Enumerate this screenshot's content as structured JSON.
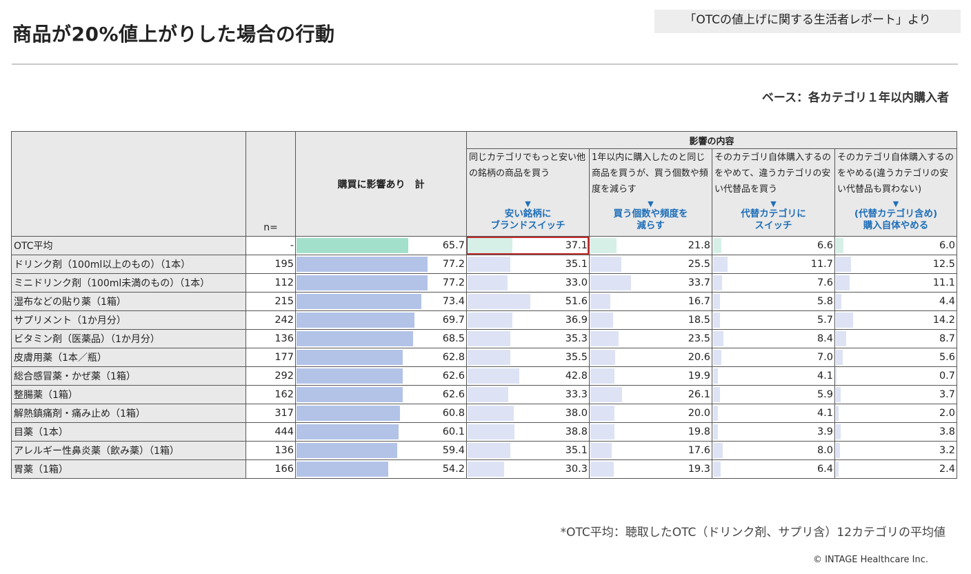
{
  "title": "商品が20%値上がりした場合の行動",
  "source": "「OTCの値上げに関する生活者レポート」より",
  "base": "ベース：各カテゴリ１年以内購入者",
  "footnote": "*OTC平均：聴取したOTC（ドリンク剤、サプリ含）12カテゴリの平均値",
  "copyright": "© INTAGE Healthcare Inc.",
  "colors": {
    "avg_total": "#a3e0cc",
    "avg_sub": "#d6f0e8",
    "total": "#b3c3e8",
    "sub": "#dde3f4",
    "accent_blue": "#1f6fb8",
    "highlight": "#c42b2b"
  },
  "chart_data": {
    "type": "table",
    "header": {
      "n_label": "n=",
      "total_label": "購買に影響あり　計",
      "impact_group_label": "影響の内容",
      "columns": [
        {
          "desc": "同じカテゴリでもっと安い他の銘柄の商品を買う",
          "arrow": "▼",
          "label_1": "安い銘柄に",
          "label_2": "ブランドスイッチ"
        },
        {
          "desc": "1年以内に購入したのと同じ商品を買うが、買う個数や頻度を減らす",
          "arrow": "▼",
          "label_1": "買う個数や頻度を",
          "label_2": "減らす"
        },
        {
          "desc": "そのカテゴリ自体購入するのをやめて、違うカテゴリの安い代替品を買う",
          "arrow": "▼",
          "label_1": "代替カテゴリに",
          "label_2": "スイッチ"
        },
        {
          "desc": "そのカテゴリ自体購入するのをやめる(違うカテゴリの安い代替品も買わない)",
          "arrow": "▼",
          "label_1": "(代替カテゴリ含め)",
          "label_2": "購入自体やめる"
        }
      ]
    },
    "rows": [
      {
        "category": "OTC平均",
        "n": "-",
        "total": 65.7,
        "values": [
          37.1,
          21.8,
          6.6,
          6.0
        ],
        "is_average": true
      },
      {
        "category": "ドリンク剤（100ml以上のもの）（1本）",
        "n": "195",
        "total": 77.2,
        "values": [
          35.1,
          25.5,
          11.7,
          12.5
        ]
      },
      {
        "category": "ミニドリンク剤（100ml未満のもの）（1本）",
        "n": "112",
        "total": 77.2,
        "values": [
          33.0,
          33.7,
          7.6,
          11.1
        ]
      },
      {
        "category": "湿布などの貼り薬（1箱）",
        "n": "215",
        "total": 73.4,
        "values": [
          51.6,
          16.7,
          5.8,
          4.4
        ]
      },
      {
        "category": "サプリメント（1か月分）",
        "n": "242",
        "total": 69.7,
        "values": [
          36.9,
          18.5,
          5.7,
          14.2
        ]
      },
      {
        "category": "ビタミン剤（医薬品）（1か月分）",
        "n": "136",
        "total": 68.5,
        "values": [
          35.3,
          23.5,
          8.4,
          8.7
        ]
      },
      {
        "category": "皮膚用薬（1本／瓶）",
        "n": "177",
        "total": 62.8,
        "values": [
          35.5,
          20.6,
          7.0,
          5.6
        ]
      },
      {
        "category": "総合感冒薬・かぜ薬（1箱）",
        "n": "292",
        "total": 62.6,
        "values": [
          42.8,
          19.9,
          4.1,
          0.7
        ]
      },
      {
        "category": "整腸薬（1箱）",
        "n": "162",
        "total": 62.6,
        "values": [
          33.3,
          26.1,
          5.9,
          3.7
        ]
      },
      {
        "category": "解熱鎮痛剤・痛み止め（1箱）",
        "n": "317",
        "total": 60.8,
        "values": [
          38.0,
          20.0,
          4.1,
          2.0
        ]
      },
      {
        "category": "目薬（1本）",
        "n": "444",
        "total": 60.1,
        "values": [
          38.8,
          19.8,
          3.9,
          3.8
        ]
      },
      {
        "category": "アレルギー性鼻炎薬（飲み薬）（1箱）",
        "n": "136",
        "total": 59.4,
        "values": [
          35.1,
          17.6,
          8.0,
          3.2
        ]
      },
      {
        "category": "胃薬（1箱）",
        "n": "166",
        "total": 54.2,
        "values": [
          30.3,
          19.3,
          6.4,
          2.4
        ]
      }
    ],
    "bar_scale_max": 100,
    "highlight_cell": {
      "row": 0,
      "column": 0
    }
  }
}
